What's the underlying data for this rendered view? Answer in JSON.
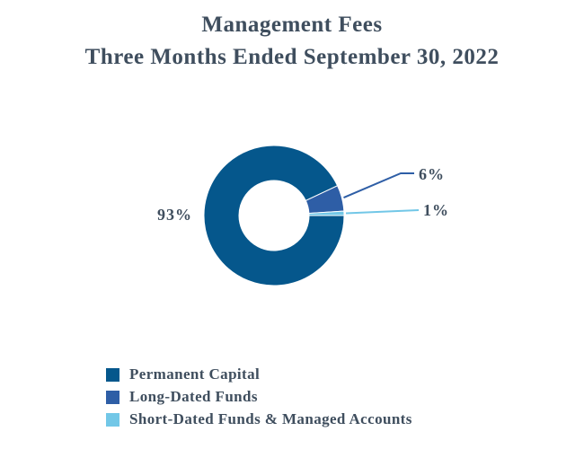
{
  "title": {
    "line1": "Management Fees",
    "line2": "Three Months Ended September 30, 2022"
  },
  "text_color": "#3F4E5E",
  "background_color": "#FFFFFF",
  "chart_data": {
    "type": "pie",
    "subtype": "donut",
    "title": "Management Fees Three Months Ended September 30, 2022",
    "start_angle_deg": 90,
    "direction": "clockwise",
    "inner_radius_ratio": 0.5,
    "legend_position": "bottom-left",
    "slices": [
      {
        "label": "Permanent Capital",
        "value": 93,
        "pct_label": "93%",
        "color": "#05578C"
      },
      {
        "label": "Long-Dated Funds",
        "value": 6,
        "pct_label": "6%",
        "color": "#2E5EA6"
      },
      {
        "label": "Short-Dated Funds & Managed Accounts",
        "value": 1,
        "pct_label": "1%",
        "color": "#72C7E7"
      }
    ]
  }
}
